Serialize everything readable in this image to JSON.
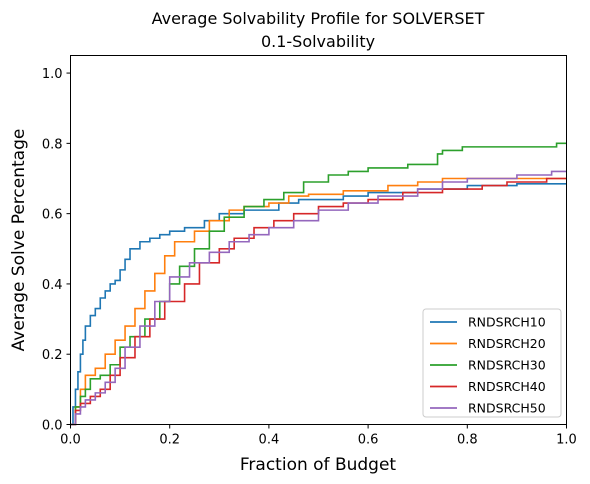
{
  "chart_data": {
    "type": "line",
    "step": true,
    "title": "Average Solvability Profile for SOLVERSET",
    "subtitle": "0.1-Solvability",
    "xlabel": "Fraction of Budget",
    "ylabel": "Average Solve Percentage",
    "xlim": [
      0,
      1
    ],
    "ylim": [
      0,
      1.05
    ],
    "xticks": [
      "0.0",
      "0.2",
      "0.4",
      "0.6",
      "0.8",
      "1.0"
    ],
    "yticks": [
      "0.0",
      "0.2",
      "0.4",
      "0.6",
      "0.8",
      "1.0"
    ],
    "grid": false,
    "legend_position": "lower-right",
    "series": [
      {
        "name": "RNDSRCH10",
        "color": "#1f77b4",
        "x": [
          0,
          0.005,
          0.01,
          0.015,
          0.02,
          0.025,
          0.03,
          0.04,
          0.05,
          0.06,
          0.07,
          0.08,
          0.09,
          0.1,
          0.11,
          0.12,
          0.14,
          0.16,
          0.18,
          0.2,
          0.23,
          0.27,
          0.3,
          0.35,
          0.42,
          0.46,
          0.55,
          0.6,
          0.7,
          0.8,
          0.9,
          1.0
        ],
        "y": [
          0,
          0.05,
          0.1,
          0.15,
          0.2,
          0.24,
          0.28,
          0.31,
          0.33,
          0.36,
          0.38,
          0.4,
          0.41,
          0.44,
          0.47,
          0.5,
          0.52,
          0.53,
          0.54,
          0.55,
          0.56,
          0.58,
          0.6,
          0.61,
          0.63,
          0.64,
          0.65,
          0.66,
          0.67,
          0.68,
          0.685,
          0.685
        ]
      },
      {
        "name": "RNDSRCH20",
        "color": "#ff7f0e",
        "x": [
          0,
          0.01,
          0.02,
          0.03,
          0.05,
          0.07,
          0.09,
          0.11,
          0.13,
          0.15,
          0.17,
          0.19,
          0.21,
          0.25,
          0.28,
          0.32,
          0.35,
          0.4,
          0.44,
          0.48,
          0.55,
          0.64,
          0.7,
          0.75,
          0.8,
          1.0
        ],
        "y": [
          0,
          0.05,
          0.1,
          0.14,
          0.16,
          0.2,
          0.24,
          0.28,
          0.33,
          0.38,
          0.43,
          0.48,
          0.52,
          0.55,
          0.58,
          0.61,
          0.62,
          0.63,
          0.65,
          0.655,
          0.665,
          0.68,
          0.69,
          0.7,
          0.7,
          0.7
        ]
      },
      {
        "name": "RNDSRCH30",
        "color": "#2ca02c",
        "x": [
          0,
          0.01,
          0.02,
          0.03,
          0.04,
          0.06,
          0.08,
          0.1,
          0.12,
          0.15,
          0.18,
          0.2,
          0.22,
          0.25,
          0.28,
          0.31,
          0.35,
          0.39,
          0.43,
          0.47,
          0.52,
          0.56,
          0.6,
          0.68,
          0.74,
          0.75,
          0.79,
          0.98,
          1.0
        ],
        "y": [
          0,
          0.05,
          0.08,
          0.1,
          0.13,
          0.14,
          0.17,
          0.22,
          0.25,
          0.3,
          0.35,
          0.4,
          0.45,
          0.5,
          0.55,
          0.59,
          0.62,
          0.64,
          0.66,
          0.69,
          0.71,
          0.72,
          0.73,
          0.74,
          0.77,
          0.78,
          0.79,
          0.8,
          0.8
        ]
      },
      {
        "name": "RNDSRCH40",
        "color": "#d62728",
        "x": [
          0,
          0.01,
          0.02,
          0.04,
          0.06,
          0.08,
          0.1,
          0.13,
          0.16,
          0.19,
          0.23,
          0.26,
          0.3,
          0.33,
          0.37,
          0.41,
          0.45,
          0.5,
          0.55,
          0.6,
          0.67,
          0.75,
          0.83,
          0.88,
          0.96,
          1.0
        ],
        "y": [
          0,
          0.04,
          0.06,
          0.08,
          0.1,
          0.14,
          0.19,
          0.25,
          0.3,
          0.35,
          0.4,
          0.46,
          0.5,
          0.53,
          0.56,
          0.58,
          0.6,
          0.62,
          0.63,
          0.64,
          0.66,
          0.67,
          0.68,
          0.69,
          0.7,
          0.7
        ]
      },
      {
        "name": "RNDSRCH50",
        "color": "#9467bd",
        "x": [
          0,
          0.01,
          0.02,
          0.03,
          0.05,
          0.07,
          0.09,
          0.11,
          0.14,
          0.17,
          0.2,
          0.24,
          0.28,
          0.32,
          0.36,
          0.4,
          0.45,
          0.5,
          0.56,
          0.62,
          0.7,
          0.75,
          0.8,
          0.9,
          0.97,
          1.0
        ],
        "y": [
          0,
          0.03,
          0.05,
          0.07,
          0.09,
          0.12,
          0.16,
          0.22,
          0.28,
          0.35,
          0.42,
          0.46,
          0.49,
          0.52,
          0.54,
          0.56,
          0.58,
          0.61,
          0.63,
          0.65,
          0.67,
          0.69,
          0.7,
          0.71,
          0.72,
          0.72
        ]
      }
    ]
  }
}
